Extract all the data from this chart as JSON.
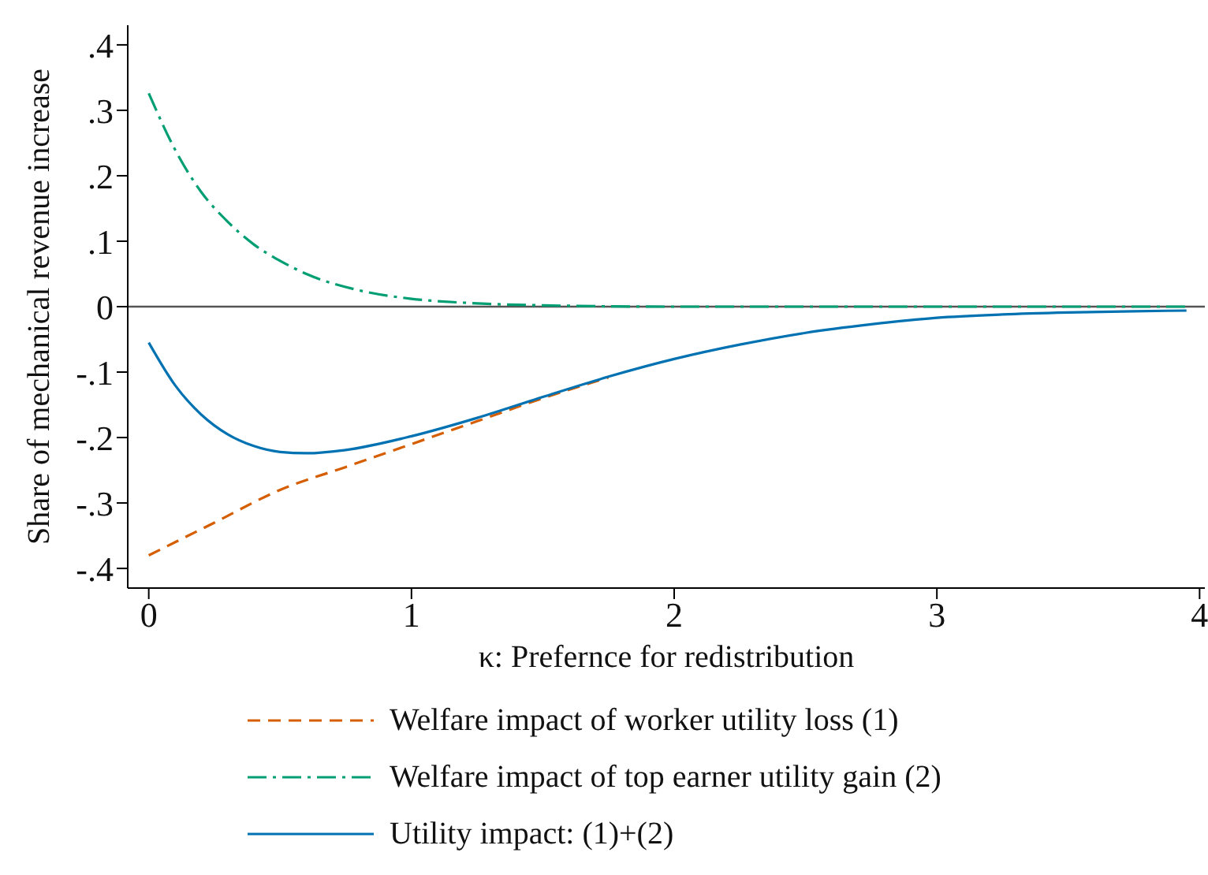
{
  "chart_data": {
    "type": "line",
    "xlabel": "κ: Prefernce for redistribution",
    "ylabel": "Share of mechanical revenue increase",
    "xlim": [
      -0.08,
      4.02
    ],
    "xticks": [
      0,
      1,
      2,
      3,
      4
    ],
    "ylim": [
      -0.43,
      0.43
    ],
    "yticks": [
      {
        "value": 0.4,
        "label": ".4"
      },
      {
        "value": 0.3,
        "label": ".3"
      },
      {
        "value": 0.2,
        "label": ".2"
      },
      {
        "value": 0.1,
        "label": ".1"
      },
      0,
      {
        "value": -0.1,
        "label": "-.1"
      },
      {
        "value": -0.2,
        "label": "-.2"
      },
      {
        "value": -0.3,
        "label": "-.3"
      },
      {
        "value": -0.4,
        "label": "-.4"
      }
    ],
    "grid": false,
    "legend": "bottom",
    "marker": "none",
    "ref_lines": [
      {
        "axis": "y",
        "value": 0,
        "color": "#555555"
      }
    ],
    "series": [
      {
        "name": "Welfare impact of worker utility loss (1)",
        "color": "#d55e00",
        "line_style": "dashed",
        "x": [
          0,
          0.25,
          0.5,
          0.75,
          1,
          1.25,
          1.5,
          1.75
        ],
        "values": [
          -0.38,
          -0.33,
          -0.28,
          -0.245,
          -0.21,
          -0.175,
          -0.14,
          -0.108
        ]
      },
      {
        "name": "Welfare impact of top earner utility gain (2)",
        "color": "#009e73",
        "line_style": "dashdot",
        "x": [
          0,
          0.1,
          0.2,
          0.3,
          0.4,
          0.5,
          0.6,
          0.8,
          1,
          1.2,
          1.5,
          2,
          2.5,
          3,
          3.5,
          3.95
        ],
        "values": [
          0.326,
          0.24,
          0.175,
          0.13,
          0.095,
          0.07,
          0.05,
          0.025,
          0.012,
          0.006,
          0.002,
          0,
          0,
          0,
          0,
          0
        ]
      },
      {
        "name": "Utility impact: (1)+(2)",
        "color": "#0072b2",
        "line_style": "solid",
        "x": [
          0,
          0.1,
          0.2,
          0.3,
          0.4,
          0.5,
          0.6,
          0.75,
          1,
          1.25,
          1.5,
          1.75,
          2,
          2.25,
          2.5,
          2.75,
          3,
          3.25,
          3.5,
          3.75,
          3.95
        ],
        "values": [
          -0.055,
          -0.12,
          -0.165,
          -0.195,
          -0.213,
          -0.222,
          -0.224,
          -0.219,
          -0.198,
          -0.17,
          -0.138,
          -0.107,
          -0.08,
          -0.058,
          -0.04,
          -0.027,
          -0.017,
          -0.012,
          -0.009,
          -0.007,
          -0.006
        ]
      }
    ]
  }
}
